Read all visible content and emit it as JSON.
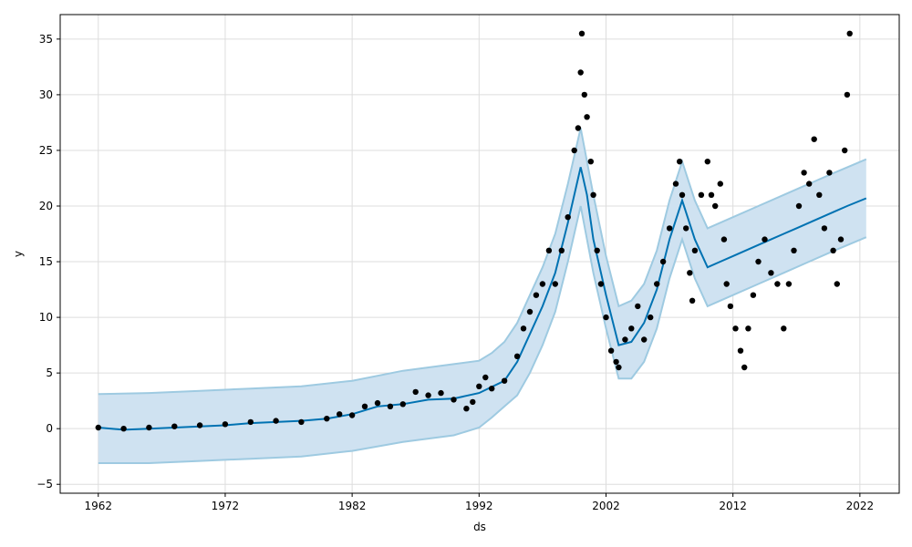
{
  "chart_data": {
    "type": "scatter",
    "title": "",
    "xlabel": "ds",
    "ylabel": "y",
    "xlim": [
      1959.0,
      2025.1
    ],
    "ylim": [
      -5.8,
      37.2
    ],
    "xticks": [
      1962,
      1972,
      1982,
      1992,
      2002,
      2012,
      2022
    ],
    "yticks": [
      -5,
      0,
      5,
      10,
      15,
      20,
      25,
      30,
      35
    ],
    "grid": true,
    "legend": "none",
    "colors": {
      "observed": "#000000",
      "forecast": "#0072B2",
      "interval": "#9ecae1",
      "interval_fill": "#cfe2f1",
      "grid": "#dddddd"
    },
    "series": [
      {
        "kind": "observed_points",
        "points": [
          [
            1962.0,
            0.1
          ],
          [
            1964.0,
            0.0
          ],
          [
            1966.0,
            0.1
          ],
          [
            1968.0,
            0.2
          ],
          [
            1970.0,
            0.3
          ],
          [
            1972.0,
            0.4
          ],
          [
            1974.0,
            0.6
          ],
          [
            1976.0,
            0.7
          ],
          [
            1978.0,
            0.6
          ],
          [
            1980.0,
            0.9
          ],
          [
            1981.0,
            1.3
          ],
          [
            1982.0,
            1.2
          ],
          [
            1983.0,
            2.0
          ],
          [
            1984.0,
            2.3
          ],
          [
            1985.0,
            2.0
          ],
          [
            1986.0,
            2.2
          ],
          [
            1987.0,
            3.3
          ],
          [
            1988.0,
            3.0
          ],
          [
            1989.0,
            3.2
          ],
          [
            1990.0,
            2.6
          ],
          [
            1991.0,
            1.8
          ],
          [
            1991.5,
            2.4
          ],
          [
            1992.0,
            3.8
          ],
          [
            1992.5,
            4.6
          ],
          [
            1993.0,
            3.6
          ],
          [
            1994.0,
            4.3
          ],
          [
            1995.0,
            6.5
          ],
          [
            1995.5,
            9.0
          ],
          [
            1996.0,
            10.5
          ],
          [
            1996.5,
            12.0
          ],
          [
            1997.0,
            13.0
          ],
          [
            1997.5,
            16.0
          ],
          [
            1998.0,
            13.0
          ],
          [
            1998.5,
            16.0
          ],
          [
            1999.0,
            19.0
          ],
          [
            1999.5,
            25.0
          ],
          [
            1999.8,
            27.0
          ],
          [
            2000.0,
            32.0
          ],
          [
            2000.1,
            35.5
          ],
          [
            2000.3,
            30.0
          ],
          [
            2000.5,
            28.0
          ],
          [
            2000.8,
            24.0
          ],
          [
            2001.0,
            21.0
          ],
          [
            2001.3,
            16.0
          ],
          [
            2001.6,
            13.0
          ],
          [
            2002.0,
            10.0
          ],
          [
            2002.4,
            7.0
          ],
          [
            2002.8,
            6.0
          ],
          [
            2003.0,
            5.5
          ],
          [
            2003.5,
            8.0
          ],
          [
            2004.0,
            9.0
          ],
          [
            2004.5,
            11.0
          ],
          [
            2005.0,
            8.0
          ],
          [
            2005.5,
            10.0
          ],
          [
            2006.0,
            13.0
          ],
          [
            2006.5,
            15.0
          ],
          [
            2007.0,
            18.0
          ],
          [
            2007.5,
            22.0
          ],
          [
            2007.8,
            24.0
          ],
          [
            2008.0,
            21.0
          ],
          [
            2008.3,
            18.0
          ],
          [
            2008.6,
            14.0
          ],
          [
            2008.8,
            11.5
          ],
          [
            2009.0,
            16.0
          ],
          [
            2009.5,
            21.0
          ],
          [
            2010.0,
            24.0
          ],
          [
            2010.3,
            21.0
          ],
          [
            2010.6,
            20.0
          ],
          [
            2011.0,
            22.0
          ],
          [
            2011.3,
            17.0
          ],
          [
            2011.5,
            13.0
          ],
          [
            2011.8,
            11.0
          ],
          [
            2012.2,
            9.0
          ],
          [
            2012.6,
            7.0
          ],
          [
            2012.9,
            5.5
          ],
          [
            2013.2,
            9.0
          ],
          [
            2013.6,
            12.0
          ],
          [
            2014.0,
            15.0
          ],
          [
            2014.5,
            17.0
          ],
          [
            2015.0,
            14.0
          ],
          [
            2015.5,
            13.0
          ],
          [
            2016.0,
            9.0
          ],
          [
            2016.4,
            13.0
          ],
          [
            2016.8,
            16.0
          ],
          [
            2017.2,
            20.0
          ],
          [
            2017.6,
            23.0
          ],
          [
            2018.0,
            22.0
          ],
          [
            2018.4,
            26.0
          ],
          [
            2018.8,
            21.0
          ],
          [
            2019.2,
            18.0
          ],
          [
            2019.6,
            23.0
          ],
          [
            2019.9,
            16.0
          ],
          [
            2020.2,
            13.0
          ],
          [
            2020.5,
            17.0
          ],
          [
            2020.8,
            25.0
          ],
          [
            2021.0,
            30.0
          ],
          [
            2021.2,
            35.5
          ]
        ]
      },
      {
        "kind": "forecast_line",
        "points": [
          [
            1962.0,
            0.1
          ],
          [
            1964.0,
            -0.1
          ],
          [
            1966.0,
            0.0
          ],
          [
            1968.0,
            0.1
          ],
          [
            1970.0,
            0.2
          ],
          [
            1972.0,
            0.3
          ],
          [
            1974.0,
            0.5
          ],
          [
            1976.0,
            0.6
          ],
          [
            1978.0,
            0.7
          ],
          [
            1980.0,
            0.9
          ],
          [
            1982.0,
            1.3
          ],
          [
            1984.0,
            2.0
          ],
          [
            1986.0,
            2.2
          ],
          [
            1988.0,
            2.6
          ],
          [
            1990.0,
            2.7
          ],
          [
            1992.0,
            3.2
          ],
          [
            1994.0,
            4.3
          ],
          [
            1995.0,
            6.0
          ],
          [
            1996.0,
            8.5
          ],
          [
            1997.0,
            11.0
          ],
          [
            1998.0,
            14.0
          ],
          [
            1999.0,
            18.5
          ],
          [
            2000.0,
            23.5
          ],
          [
            2000.5,
            21.0
          ],
          [
            2001.0,
            17.0
          ],
          [
            2002.0,
            12.0
          ],
          [
            2003.0,
            7.5
          ],
          [
            2004.0,
            7.8
          ],
          [
            2005.0,
            9.5
          ],
          [
            2006.0,
            12.5
          ],
          [
            2007.0,
            17.0
          ],
          [
            2008.0,
            20.5
          ],
          [
            2009.0,
            17.0
          ],
          [
            2010.0,
            14.5
          ],
          [
            2011.0,
            15.0
          ],
          [
            2012.0,
            15.5
          ],
          [
            2013.0,
            16.0
          ],
          [
            2014.0,
            16.5
          ],
          [
            2015.0,
            17.0
          ],
          [
            2016.0,
            17.5
          ],
          [
            2017.0,
            18.0
          ],
          [
            2018.0,
            18.5
          ],
          [
            2019.0,
            19.0
          ],
          [
            2020.0,
            19.5
          ],
          [
            2021.0,
            20.0
          ],
          [
            2022.5,
            20.7
          ]
        ]
      },
      {
        "kind": "interval_upper",
        "points": [
          [
            1962.0,
            3.1
          ],
          [
            1966.0,
            3.2
          ],
          [
            1970.0,
            3.4
          ],
          [
            1974.0,
            3.6
          ],
          [
            1978.0,
            3.8
          ],
          [
            1982.0,
            4.3
          ],
          [
            1986.0,
            5.2
          ],
          [
            1990.0,
            5.8
          ],
          [
            1992.0,
            6.1
          ],
          [
            1993.0,
            6.8
          ],
          [
            1994.0,
            7.8
          ],
          [
            1995.0,
            9.5
          ],
          [
            1996.0,
            12.0
          ],
          [
            1997.0,
            14.5
          ],
          [
            1998.0,
            17.5
          ],
          [
            1999.0,
            22.0
          ],
          [
            2000.0,
            27.0
          ],
          [
            2001.0,
            21.0
          ],
          [
            2002.0,
            15.5
          ],
          [
            2003.0,
            11.0
          ],
          [
            2004.0,
            11.5
          ],
          [
            2005.0,
            13.0
          ],
          [
            2006.0,
            16.0
          ],
          [
            2007.0,
            20.5
          ],
          [
            2008.0,
            24.0
          ],
          [
            2009.0,
            20.5
          ],
          [
            2010.0,
            18.0
          ],
          [
            2012.0,
            19.0
          ],
          [
            2014.0,
            20.0
          ],
          [
            2016.0,
            21.0
          ],
          [
            2018.0,
            22.0
          ],
          [
            2020.0,
            23.0
          ],
          [
            2022.5,
            24.2
          ]
        ]
      },
      {
        "kind": "interval_lower",
        "points": [
          [
            1962.0,
            -3.1
          ],
          [
            1966.0,
            -3.1
          ],
          [
            1970.0,
            -2.9
          ],
          [
            1974.0,
            -2.7
          ],
          [
            1978.0,
            -2.5
          ],
          [
            1982.0,
            -2.0
          ],
          [
            1986.0,
            -1.2
          ],
          [
            1990.0,
            -0.6
          ],
          [
            1992.0,
            0.1
          ],
          [
            1993.0,
            1.0
          ],
          [
            1994.0,
            2.0
          ],
          [
            1995.0,
            3.0
          ],
          [
            1996.0,
            5.0
          ],
          [
            1997.0,
            7.5
          ],
          [
            1998.0,
            10.5
          ],
          [
            1999.0,
            15.0
          ],
          [
            2000.0,
            20.0
          ],
          [
            2001.0,
            14.0
          ],
          [
            2002.0,
            9.0
          ],
          [
            2003.0,
            4.5
          ],
          [
            2004.0,
            4.5
          ],
          [
            2005.0,
            6.0
          ],
          [
            2006.0,
            9.0
          ],
          [
            2007.0,
            13.5
          ],
          [
            2008.0,
            17.0
          ],
          [
            2009.0,
            13.5
          ],
          [
            2010.0,
            11.0
          ],
          [
            2012.0,
            12.0
          ],
          [
            2014.0,
            13.0
          ],
          [
            2016.0,
            14.0
          ],
          [
            2018.0,
            15.0
          ],
          [
            2020.0,
            16.0
          ],
          [
            2022.5,
            17.2
          ]
        ]
      }
    ]
  }
}
